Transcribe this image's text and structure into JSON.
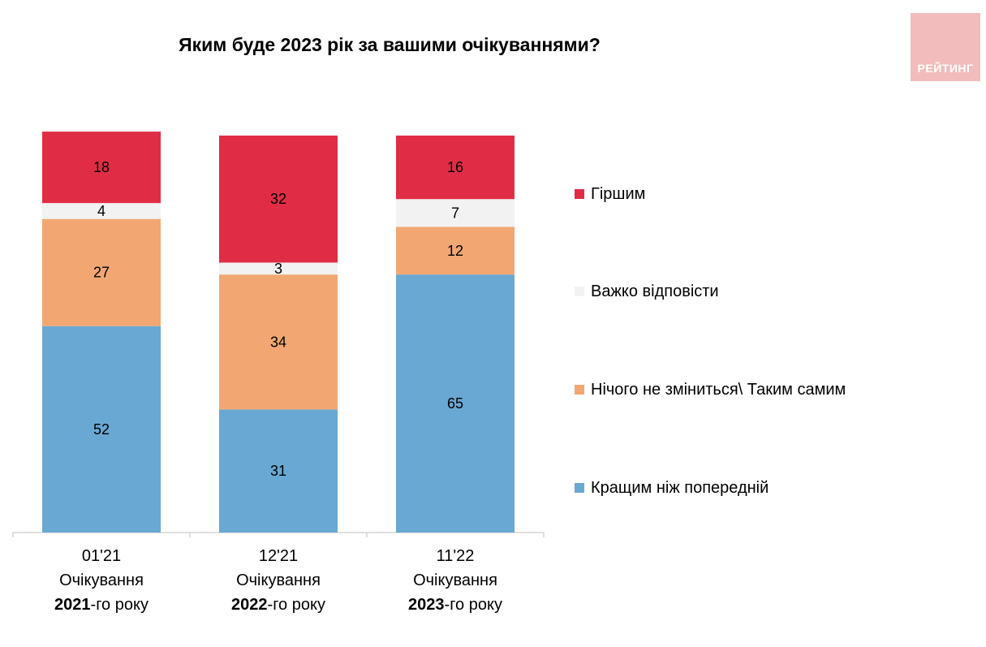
{
  "title": "Яким буде 2023 рік за вашими очікуваннями?",
  "logo": {
    "text": "РЕЙТИНГ"
  },
  "colors": {
    "worse": "#e02d45",
    "hard_to_say": "#f2f2f2",
    "same": "#f2a772",
    "better": "#69a8d3",
    "logo_bg": "#f2bcbc"
  },
  "chart_data": {
    "type": "bar",
    "stacked": true,
    "ylim": [
      0,
      100
    ],
    "grid": false,
    "legend_position": "right",
    "categories": [
      {
        "line1": "01'21",
        "line2": "Очікування",
        "year": "2021",
        "suffix": "-го року"
      },
      {
        "line1": "12'21",
        "line2": "Очікування",
        "year": "2022",
        "suffix": "-го року"
      },
      {
        "line1": "11'22",
        "line2": "Очікування",
        "year": "2023",
        "suffix": "-го року"
      }
    ],
    "series": [
      {
        "key": "better",
        "name": "Кращим ніж попередній",
        "color": "#69a8d3",
        "values": [
          52,
          31,
          65
        ]
      },
      {
        "key": "same",
        "name": "Нічого не зміниться\\ Таким самим",
        "color": "#f2a772",
        "values": [
          27,
          34,
          12
        ]
      },
      {
        "key": "hard_to_say",
        "name": "Важко відповісти",
        "color": "#f2f2f2",
        "values": [
          4,
          3,
          7
        ]
      },
      {
        "key": "worse",
        "name": "Гіршим",
        "color": "#e02d45",
        "values": [
          18,
          32,
          16
        ]
      }
    ],
    "legend": [
      {
        "key": "worse",
        "name": "Гіршим",
        "color": "#e02d45"
      },
      {
        "key": "hard_to_say",
        "name": "Важко відповісти",
        "color": "#f2f2f2"
      },
      {
        "key": "same",
        "name": "Нічого не зміниться\\ Таким самим",
        "color": "#f2a772"
      },
      {
        "key": "better",
        "name": "Кращим ніж попередній",
        "color": "#69a8d3"
      }
    ]
  }
}
